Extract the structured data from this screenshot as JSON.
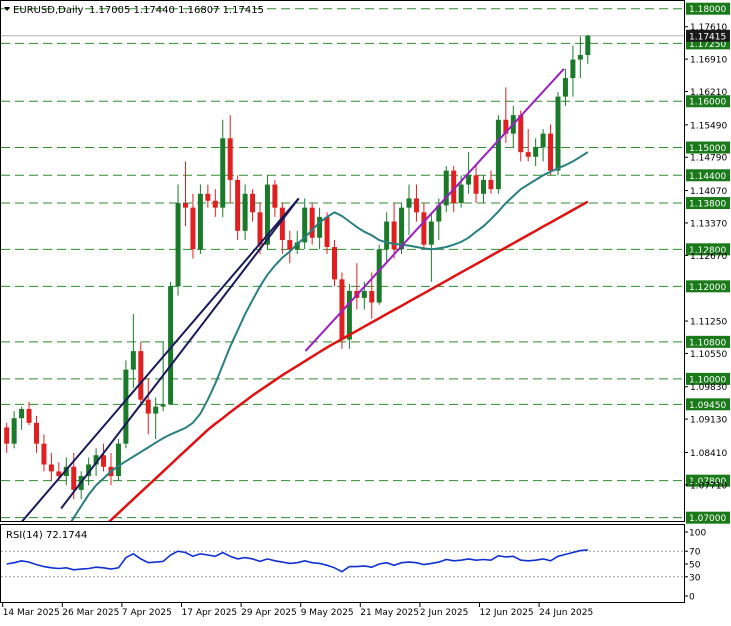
{
  "header": {
    "symbol_label": "EURUSD,Daily",
    "ohlc_label": "1.17005 1.17440 1.16807 1.17415"
  },
  "rsi_label": "RSI(14) 72.1744",
  "colors": {
    "bull": "#1a7a2a",
    "bear": "#e02020",
    "level_line": "#2e8b2e",
    "level_label_bg": "#1a7a1a",
    "price_label_bg": "#1a1a1a",
    "ma_fast": "#2a8080",
    "ma_slow": "#e01010",
    "trend_dark": "#1a1a5a",
    "trend_purple": "#9a20c0",
    "rsi_line": "#1030d0"
  },
  "chart_data": [
    {
      "type": "candlestick",
      "ylim": [
        1.0695,
        1.1808
      ],
      "price_axis_ticks": [
        1.1761,
        1.1691,
        1.1621,
        1.1549,
        1.1479,
        1.1407,
        1.1337,
        1.1267,
        1.1125,
        1.1055,
        1.0983,
        1.0913,
        1.0841,
        1.0771
      ],
      "price_axis_tick_labels": [
        "1.17610",
        "1.16910",
        "1.16210",
        "1.15490",
        "1.14790",
        "1.14070",
        "1.13370",
        "1.12670",
        "1.11250",
        "1.10550",
        "1.09830",
        "1.09130",
        "1.08410",
        "1.07710"
      ],
      "levels": [
        1.18,
        1.1725,
        1.16,
        1.15,
        1.144,
        1.138,
        1.128,
        1.12,
        1.108,
        1.1,
        1.0945,
        1.078,
        1.07
      ],
      "level_labels": [
        "1.18000",
        "1.17250",
        "1.16000",
        "1.15000",
        "1.14400",
        "1.13800",
        "1.12800",
        "1.12000",
        "1.10800",
        "1.10000",
        "1.09450",
        "1.07800",
        "1.07000"
      ],
      "current_price": 1.17415,
      "current_price_label": "1.17415",
      "x_axis_labels": [
        "14 Mar 2025",
        "26 Mar 2025",
        "7 Apr 2025",
        "17 Apr 2025",
        "29 Apr 2025",
        "9 May 2025",
        "21 May 2025",
        "2 Jun 2025",
        "12 Jun 2025",
        "24 Jun 2025"
      ],
      "x_axis_label_index": [
        0,
        8,
        16,
        24,
        32,
        40,
        48,
        56,
        64,
        72
      ],
      "candles": [
        [
          1.0895,
          1.0905,
          1.084,
          1.086
        ],
        [
          1.086,
          1.093,
          1.085,
          1.0915
        ],
        [
          1.0915,
          1.094,
          1.089,
          1.0935
        ],
        [
          1.0935,
          1.095,
          1.09,
          1.0905
        ],
        [
          1.0905,
          1.092,
          1.084,
          1.086
        ],
        [
          1.086,
          1.088,
          1.08,
          1.0815
        ],
        [
          1.0815,
          1.084,
          1.078,
          1.08
        ],
        [
          1.08,
          1.082,
          1.078,
          1.079
        ],
        [
          1.079,
          1.083,
          1.077,
          1.081
        ],
        [
          1.081,
          1.084,
          1.074,
          1.076
        ],
        [
          1.076,
          1.08,
          1.074,
          1.079
        ],
        [
          1.079,
          1.083,
          1.077,
          1.0815
        ],
        [
          1.0815,
          1.085,
          1.079,
          1.0835
        ],
        [
          1.0835,
          1.086,
          1.08,
          1.081
        ],
        [
          1.081,
          1.084,
          1.077,
          1.079
        ],
        [
          1.079,
          1.087,
          1.078,
          1.086
        ],
        [
          1.086,
          1.104,
          1.085,
          1.102
        ],
        [
          1.102,
          1.114,
          1.098,
          1.106
        ],
        [
          1.106,
          1.108,
          1.094,
          1.0955
        ],
        [
          1.0955,
          1.1,
          1.088,
          1.0925
        ],
        [
          1.0925,
          1.096,
          1.087,
          1.094
        ],
        [
          1.094,
          1.108,
          1.093,
          1.0945
        ],
        [
          1.0945,
          1.121,
          1.0945,
          1.12
        ],
        [
          1.12,
          1.142,
          1.118,
          1.138
        ],
        [
          1.138,
          1.147,
          1.133,
          1.137
        ],
        [
          1.137,
          1.14,
          1.126,
          1.128
        ],
        [
          1.128,
          1.142,
          1.127,
          1.14
        ],
        [
          1.14,
          1.142,
          1.137,
          1.1385
        ],
        [
          1.1385,
          1.141,
          1.135,
          1.137
        ],
        [
          1.137,
          1.156,
          1.135,
          1.152
        ],
        [
          1.152,
          1.157,
          1.138,
          1.143
        ],
        [
          1.143,
          1.144,
          1.13,
          1.132
        ],
        [
          1.132,
          1.142,
          1.13,
          1.14
        ],
        [
          1.14,
          1.141,
          1.134,
          1.136
        ],
        [
          1.136,
          1.138,
          1.127,
          1.129
        ],
        [
          1.129,
          1.144,
          1.128,
          1.142
        ],
        [
          1.142,
          1.143,
          1.135,
          1.137
        ],
        [
          1.137,
          1.138,
          1.127,
          1.13
        ],
        [
          1.13,
          1.132,
          1.125,
          1.128
        ],
        [
          1.128,
          1.132,
          1.127,
          1.1295
        ],
        [
          1.1295,
          1.139,
          1.128,
          1.137
        ],
        [
          1.137,
          1.138,
          1.129,
          1.1305
        ],
        [
          1.1305,
          1.137,
          1.128,
          1.135
        ],
        [
          1.135,
          1.136,
          1.127,
          1.1285
        ],
        [
          1.1285,
          1.13,
          1.12,
          1.1215
        ],
        [
          1.1215,
          1.123,
          1.1065,
          1.1085
        ],
        [
          1.1085,
          1.1205,
          1.1065,
          1.119
        ],
        [
          1.119,
          1.125,
          1.115,
          1.1175
        ],
        [
          1.1175,
          1.121,
          1.115,
          1.119
        ],
        [
          1.119,
          1.123,
          1.113,
          1.1165
        ],
        [
          1.1165,
          1.129,
          1.116,
          1.128
        ],
        [
          1.128,
          1.136,
          1.125,
          1.134
        ],
        [
          1.134,
          1.138,
          1.126,
          1.128
        ],
        [
          1.128,
          1.138,
          1.127,
          1.137
        ],
        [
          1.137,
          1.142,
          1.131,
          1.139
        ],
        [
          1.139,
          1.142,
          1.134,
          1.136
        ],
        [
          1.136,
          1.138,
          1.128,
          1.129
        ],
        [
          1.129,
          1.136,
          1.121,
          1.134
        ],
        [
          1.134,
          1.139,
          1.13,
          1.1375
        ],
        [
          1.1375,
          1.146,
          1.136,
          1.145
        ],
        [
          1.145,
          1.146,
          1.136,
          1.138
        ],
        [
          1.138,
          1.144,
          1.137,
          1.142
        ],
        [
          1.142,
          1.149,
          1.14,
          1.144
        ],
        [
          1.144,
          1.146,
          1.138,
          1.14
        ],
        [
          1.14,
          1.144,
          1.138,
          1.143
        ],
        [
          1.143,
          1.145,
          1.14,
          1.141
        ],
        [
          1.141,
          1.157,
          1.14,
          1.156
        ],
        [
          1.156,
          1.163,
          1.151,
          1.153
        ],
        [
          1.153,
          1.159,
          1.15,
          1.157
        ],
        [
          1.157,
          1.158,
          1.147,
          1.149
        ],
        [
          1.149,
          1.154,
          1.147,
          1.148
        ],
        [
          1.148,
          1.152,
          1.146,
          1.15
        ],
        [
          1.15,
          1.154,
          1.147,
          1.153
        ],
        [
          1.153,
          1.155,
          1.144,
          1.145
        ],
        [
          1.145,
          1.162,
          1.144,
          1.161
        ],
        [
          1.161,
          1.167,
          1.159,
          1.165
        ],
        [
          1.165,
          1.172,
          1.161,
          1.169
        ],
        [
          1.169,
          1.174,
          1.165,
          1.17
        ],
        [
          1.17,
          1.1744,
          1.1681,
          1.17415
        ]
      ],
      "ma_fast": [
        1.058,
        1.06,
        1.0625,
        1.065,
        1.0675,
        1.07,
        1.0725,
        1.075,
        1.077,
        1.0785,
        1.08,
        1.0812,
        1.0822,
        1.0832,
        1.0842,
        1.0852,
        1.0862,
        1.0872,
        1.088,
        1.0887,
        1.0894,
        1.0905,
        1.0925,
        1.0955,
        1.099,
        1.103,
        1.107,
        1.1105,
        1.114,
        1.117,
        1.12,
        1.1225,
        1.1245,
        1.1262,
        1.1275,
        1.1292,
        1.1305,
        1.1322,
        1.1338,
        1.135,
        1.136,
        1.1352,
        1.134,
        1.1328,
        1.1318,
        1.131,
        1.13,
        1.1295,
        1.1292,
        1.129,
        1.1288,
        1.1285,
        1.1282,
        1.128,
        1.1282,
        1.1285,
        1.129,
        1.1296,
        1.1305,
        1.1318,
        1.133,
        1.1345,
        1.1362,
        1.138,
        1.1395,
        1.141,
        1.142,
        1.143,
        1.144,
        1.1448,
        1.1455,
        1.1462,
        1.147,
        1.148,
        1.149
      ],
      "ma_slow": [
        1.065,
        1.0665,
        1.068,
        1.0695,
        1.071,
        1.0725,
        1.074,
        1.0755,
        1.077,
        1.0785,
        1.08,
        1.0815,
        1.083,
        1.0845,
        1.086,
        1.0875,
        1.089,
        1.0903,
        1.0915,
        1.0928,
        1.094,
        1.0952,
        1.0964,
        1.0975,
        1.0986,
        1.0997,
        1.1008,
        1.1018,
        1.1028,
        1.1038,
        1.1048,
        1.1058,
        1.1068,
        1.1077,
        1.1086,
        1.1095,
        1.1104,
        1.1113,
        1.1122,
        1.1131,
        1.114,
        1.1149,
        1.1158,
        1.1167,
        1.1176,
        1.1185,
        1.1194,
        1.1203,
        1.1212,
        1.1221,
        1.123,
        1.1239,
        1.1248,
        1.1257,
        1.1266,
        1.1275,
        1.1284,
        1.1293,
        1.1302,
        1.1311,
        1.132,
        1.1329,
        1.1338,
        1.1347,
        1.1356,
        1.1365,
        1.1374,
        1.1383
      ],
      "trendlines": [
        {
          "from": [
            -0.7,
            1.064
          ],
          "to": [
            39.2,
            1.139
          ]
        },
        {
          "from": [
            7.3,
            1.072
          ],
          "to": [
            39.2,
            1.139
          ]
        },
        {
          "from": [
            40.1,
            1.106
          ],
          "to": [
            74.8,
            1.167
          ]
        }
      ]
    },
    {
      "type": "line",
      "ylim": [
        0,
        100
      ],
      "y_ticks": [
        100,
        70,
        50,
        30,
        0
      ],
      "y_tick_labels": [
        "100",
        "70",
        "50",
        "30",
        "0"
      ],
      "reference_lines": [
        70,
        30
      ],
      "values": [
        50,
        52,
        55,
        53,
        49,
        46,
        44,
        43,
        44,
        41,
        42,
        43,
        45,
        44,
        42,
        44,
        60,
        66,
        58,
        52,
        53,
        54,
        64,
        70,
        68,
        62,
        66,
        64,
        62,
        68,
        62,
        58,
        60,
        58,
        54,
        58,
        55,
        53,
        51,
        52,
        55,
        52,
        51,
        48,
        44,
        38,
        46,
        46,
        47,
        45,
        50,
        52,
        48,
        52,
        53,
        52,
        49,
        51,
        53,
        57,
        55,
        56,
        58,
        56,
        57,
        56,
        63,
        61,
        62,
        56,
        55,
        56,
        58,
        55,
        62,
        65,
        68,
        71,
        72
      ]
    }
  ]
}
